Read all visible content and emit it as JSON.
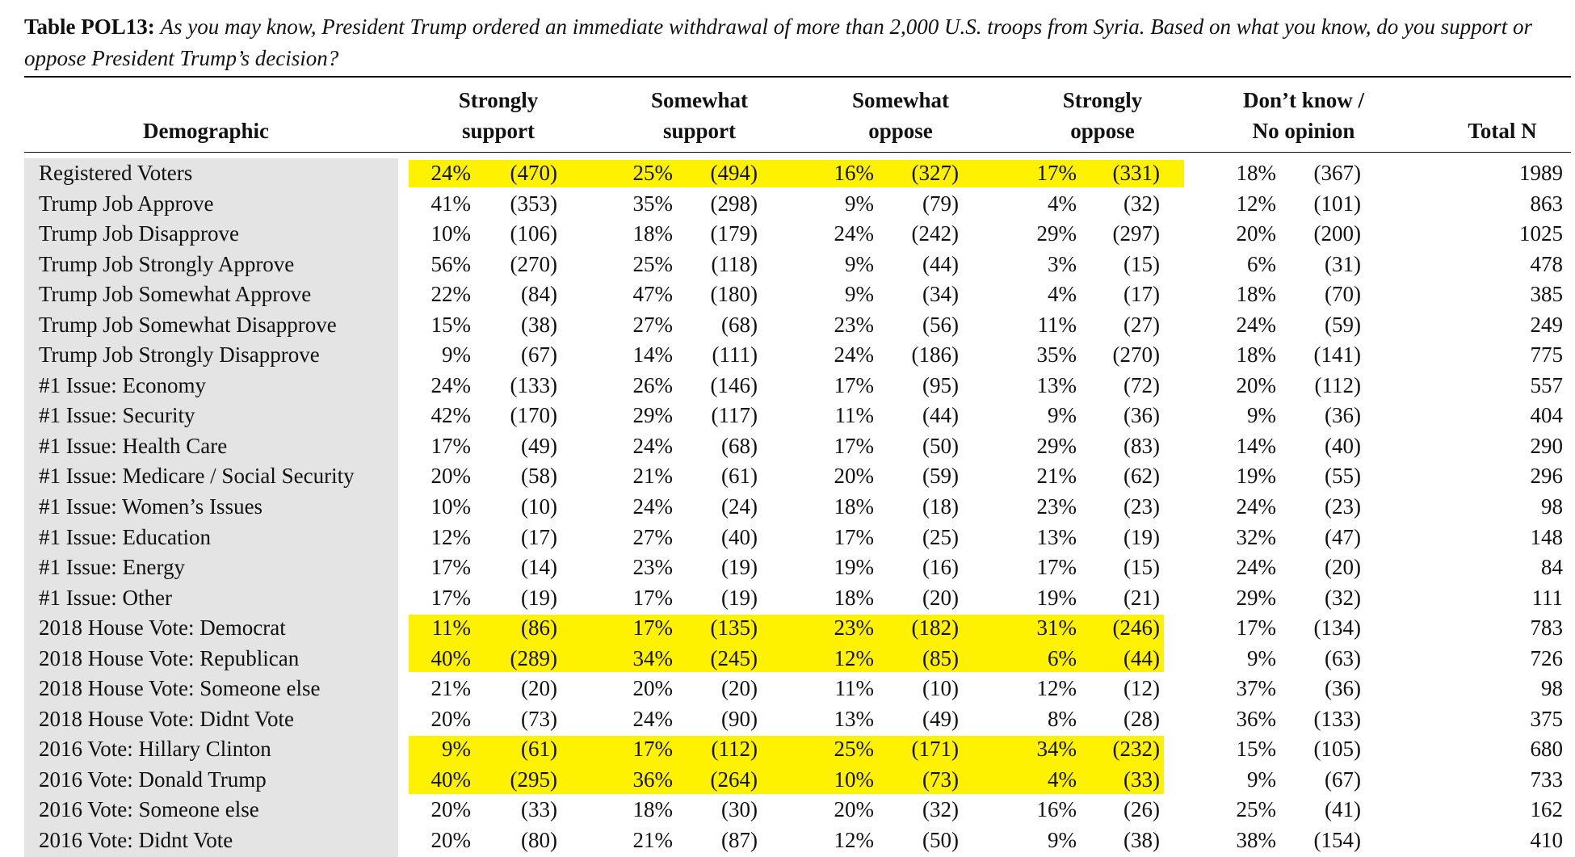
{
  "title": {
    "label": "Table POL13:",
    "question": "As you may know, President Trump ordered an immediate withdrawal of more than 2,000 U.S. troops from Syria. Based on what you know, do you support or oppose President Trump’s decision?"
  },
  "headers": {
    "demographic": "Demographic",
    "columns": [
      {
        "line1": "Strongly",
        "line2": "support"
      },
      {
        "line1": "Somewhat",
        "line2": "support"
      },
      {
        "line1": "Somewhat",
        "line2": "oppose"
      },
      {
        "line1": "Strongly",
        "line2": "oppose"
      },
      {
        "line1": "Don’t know /",
        "line2": "No opinion"
      }
    ],
    "total": "Total N"
  },
  "highlight_color": "#fff200",
  "rows": [
    {
      "label": "Registered Voters",
      "cells": [
        [
          "24%",
          "(470)"
        ],
        [
          "25%",
          "(494)"
        ],
        [
          "16%",
          "(327)"
        ],
        [
          "17%",
          "(331)"
        ],
        [
          "18%",
          "(367)"
        ]
      ],
      "total": "1989",
      "highlight": true
    },
    {
      "label": "Trump Job Approve",
      "cells": [
        [
          "41%",
          "(353)"
        ],
        [
          "35%",
          "(298)"
        ],
        [
          "9%",
          "(79)"
        ],
        [
          "4%",
          "(32)"
        ],
        [
          "12%",
          "(101)"
        ]
      ],
      "total": "863",
      "highlight": false
    },
    {
      "label": "Trump Job Disapprove",
      "cells": [
        [
          "10%",
          "(106)"
        ],
        [
          "18%",
          "(179)"
        ],
        [
          "24%",
          "(242)"
        ],
        [
          "29%",
          "(297)"
        ],
        [
          "20%",
          "(200)"
        ]
      ],
      "total": "1025",
      "highlight": false
    },
    {
      "label": "Trump Job Strongly Approve",
      "cells": [
        [
          "56%",
          "(270)"
        ],
        [
          "25%",
          "(118)"
        ],
        [
          "9%",
          "(44)"
        ],
        [
          "3%",
          "(15)"
        ],
        [
          "6%",
          "(31)"
        ]
      ],
      "total": "478",
      "highlight": false
    },
    {
      "label": "Trump Job Somewhat Approve",
      "cells": [
        [
          "22%",
          "(84)"
        ],
        [
          "47%",
          "(180)"
        ],
        [
          "9%",
          "(34)"
        ],
        [
          "4%",
          "(17)"
        ],
        [
          "18%",
          "(70)"
        ]
      ],
      "total": "385",
      "highlight": false
    },
    {
      "label": "Trump Job Somewhat Disapprove",
      "cells": [
        [
          "15%",
          "(38)"
        ],
        [
          "27%",
          "(68)"
        ],
        [
          "23%",
          "(56)"
        ],
        [
          "11%",
          "(27)"
        ],
        [
          "24%",
          "(59)"
        ]
      ],
      "total": "249",
      "highlight": false
    },
    {
      "label": "Trump Job Strongly Disapprove",
      "cells": [
        [
          "9%",
          "(67)"
        ],
        [
          "14%",
          "(111)"
        ],
        [
          "24%",
          "(186)"
        ],
        [
          "35%",
          "(270)"
        ],
        [
          "18%",
          "(141)"
        ]
      ],
      "total": "775",
      "highlight": false
    },
    {
      "label": "#1 Issue: Economy",
      "cells": [
        [
          "24%",
          "(133)"
        ],
        [
          "26%",
          "(146)"
        ],
        [
          "17%",
          "(95)"
        ],
        [
          "13%",
          "(72)"
        ],
        [
          "20%",
          "(112)"
        ]
      ],
      "total": "557",
      "highlight": false
    },
    {
      "label": "#1 Issue: Security",
      "cells": [
        [
          "42%",
          "(170)"
        ],
        [
          "29%",
          "(117)"
        ],
        [
          "11%",
          "(44)"
        ],
        [
          "9%",
          "(36)"
        ],
        [
          "9%",
          "(36)"
        ]
      ],
      "total": "404",
      "highlight": false
    },
    {
      "label": "#1 Issue: Health Care",
      "cells": [
        [
          "17%",
          "(49)"
        ],
        [
          "24%",
          "(68)"
        ],
        [
          "17%",
          "(50)"
        ],
        [
          "29%",
          "(83)"
        ],
        [
          "14%",
          "(40)"
        ]
      ],
      "total": "290",
      "highlight": false
    },
    {
      "label": "#1 Issue: Medicare / Social Security",
      "cells": [
        [
          "20%",
          "(58)"
        ],
        [
          "21%",
          "(61)"
        ],
        [
          "20%",
          "(59)"
        ],
        [
          "21%",
          "(62)"
        ],
        [
          "19%",
          "(55)"
        ]
      ],
      "total": "296",
      "highlight": false
    },
    {
      "label": "#1 Issue: Women’s Issues",
      "cells": [
        [
          "10%",
          "(10)"
        ],
        [
          "24%",
          "(24)"
        ],
        [
          "18%",
          "(18)"
        ],
        [
          "23%",
          "(23)"
        ],
        [
          "24%",
          "(23)"
        ]
      ],
      "total": "98",
      "highlight": false
    },
    {
      "label": "#1 Issue: Education",
      "cells": [
        [
          "12%",
          "(17)"
        ],
        [
          "27%",
          "(40)"
        ],
        [
          "17%",
          "(25)"
        ],
        [
          "13%",
          "(19)"
        ],
        [
          "32%",
          "(47)"
        ]
      ],
      "total": "148",
      "highlight": false
    },
    {
      "label": "#1 Issue: Energy",
      "cells": [
        [
          "17%",
          "(14)"
        ],
        [
          "23%",
          "(19)"
        ],
        [
          "19%",
          "(16)"
        ],
        [
          "17%",
          "(15)"
        ],
        [
          "24%",
          "(20)"
        ]
      ],
      "total": "84",
      "highlight": false
    },
    {
      "label": "#1 Issue: Other",
      "cells": [
        [
          "17%",
          "(19)"
        ],
        [
          "17%",
          "(19)"
        ],
        [
          "18%",
          "(20)"
        ],
        [
          "19%",
          "(21)"
        ],
        [
          "29%",
          "(32)"
        ]
      ],
      "total": "111",
      "highlight": false
    },
    {
      "label": "2018 House Vote: Democrat",
      "cells": [
        [
          "11%",
          "(86)"
        ],
        [
          "17%",
          "(135)"
        ],
        [
          "23%",
          "(182)"
        ],
        [
          "31%",
          "(246)"
        ],
        [
          "17%",
          "(134)"
        ]
      ],
      "total": "783",
      "highlight": true
    },
    {
      "label": "2018 House Vote: Republican",
      "cells": [
        [
          "40%",
          "(289)"
        ],
        [
          "34%",
          "(245)"
        ],
        [
          "12%",
          "(85)"
        ],
        [
          "6%",
          "(44)"
        ],
        [
          "9%",
          "(63)"
        ]
      ],
      "total": "726",
      "highlight": true
    },
    {
      "label": "2018 House Vote: Someone else",
      "cells": [
        [
          "21%",
          "(20)"
        ],
        [
          "20%",
          "(20)"
        ],
        [
          "11%",
          "(10)"
        ],
        [
          "12%",
          "(12)"
        ],
        [
          "37%",
          "(36)"
        ]
      ],
      "total": "98",
      "highlight": false
    },
    {
      "label": "2018 House Vote: Didnt Vote",
      "cells": [
        [
          "20%",
          "(73)"
        ],
        [
          "24%",
          "(90)"
        ],
        [
          "13%",
          "(49)"
        ],
        [
          "8%",
          "(28)"
        ],
        [
          "36%",
          "(133)"
        ]
      ],
      "total": "375",
      "highlight": false
    },
    {
      "label": "2016 Vote: Hillary Clinton",
      "cells": [
        [
          "9%",
          "(61)"
        ],
        [
          "17%",
          "(112)"
        ],
        [
          "25%",
          "(171)"
        ],
        [
          "34%",
          "(232)"
        ],
        [
          "15%",
          "(105)"
        ]
      ],
      "total": "680",
      "highlight": true
    },
    {
      "label": "2016 Vote: Donald Trump",
      "cells": [
        [
          "40%",
          "(295)"
        ],
        [
          "36%",
          "(264)"
        ],
        [
          "10%",
          "(73)"
        ],
        [
          "4%",
          "(33)"
        ],
        [
          "9%",
          "(67)"
        ]
      ],
      "total": "733",
      "highlight": true
    },
    {
      "label": "2016 Vote: Someone else",
      "cells": [
        [
          "20%",
          "(33)"
        ],
        [
          "18%",
          "(30)"
        ],
        [
          "20%",
          "(32)"
        ],
        [
          "16%",
          "(26)"
        ],
        [
          "25%",
          "(41)"
        ]
      ],
      "total": "162",
      "highlight": false
    },
    {
      "label": "2016 Vote: Didnt Vote",
      "cells": [
        [
          "20%",
          "(80)"
        ],
        [
          "21%",
          "(87)"
        ],
        [
          "12%",
          "(50)"
        ],
        [
          "9%",
          "(38)"
        ],
        [
          "38%",
          "(154)"
        ]
      ],
      "total": "410",
      "highlight": false
    }
  ]
}
